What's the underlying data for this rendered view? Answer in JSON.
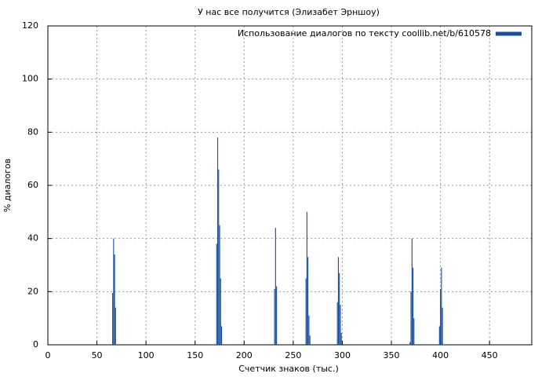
{
  "chart_data": {
    "type": "bar",
    "title": "У нас все получится (Элизабет Эрншоу)",
    "x_label": "Счетчик знаков (тыс.)",
    "y_label": "% диалогов",
    "series": [
      {
        "name": "Использование диалогов по тексту coollib.net/b/610578",
        "color": "#1a4fa0",
        "x": [
          66,
          67,
          68,
          69,
          172,
          173,
          174,
          175,
          176,
          177,
          231,
          232,
          233,
          263,
          264,
          265,
          266,
          267,
          295,
          296,
          297,
          298,
          299,
          369,
          370,
          371,
          372,
          373,
          399,
          400,
          401,
          402
        ],
        "values": [
          19.5,
          40,
          34,
          14,
          38,
          78,
          66,
          45,
          25,
          7,
          21,
          44,
          22,
          25,
          50,
          33,
          11,
          3.5,
          16,
          33,
          27,
          15,
          4.5,
          1,
          20,
          40,
          29,
          10,
          7,
          21,
          29,
          14
        ]
      }
    ],
    "xlim": [
      0,
      493
    ],
    "ylim": [
      0,
      120
    ],
    "xticks": [
      0,
      50,
      100,
      150,
      200,
      250,
      300,
      350,
      400,
      450
    ],
    "yticks": [
      0,
      20,
      40,
      60,
      80,
      100,
      120
    ],
    "grid": true,
    "legend": "top-right"
  }
}
